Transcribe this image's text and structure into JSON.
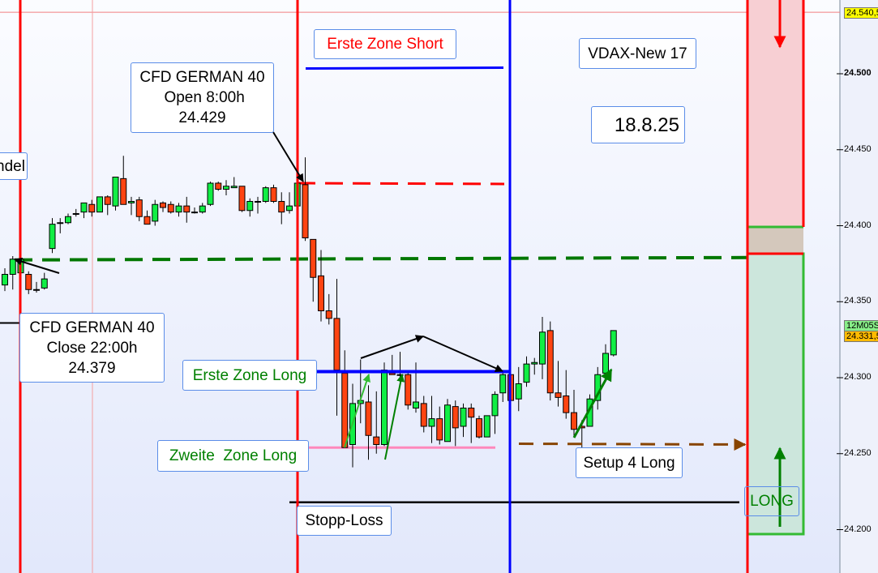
{
  "colors": {
    "up": "#11ee44",
    "down": "#ff4411",
    "session": "#ff0000",
    "zone_line": "#0000ff",
    "stop": "#000000",
    "support": "#007700",
    "pink": "#ff88bb",
    "brown": "#884400",
    "label_border": "#5b8de8"
  },
  "labels": {
    "partial_left": "ndel",
    "open_box": "CFD GERMAN 40\n Open 8:00h\n24.429",
    "erste_short": "Erste Zone Short",
    "vdax": "VDAX-New 17",
    "date": "18.8.25",
    "close_box": "CFD GERMAN 40\nClose 22:00h\n24.379",
    "erste_long": "Erste Zone Long",
    "zweite_long": "Zweite  Zone Long",
    "setup": "Setup 4 Long",
    "stop": "Stopp-Loss",
    "long": "LONG"
  },
  "chart_data": {
    "type": "candlestick",
    "ylim": [
      24175,
      24548
    ],
    "y_ticks": [
      "24.500",
      "24.450",
      "24.400",
      "24.350",
      "24.300",
      "24.250",
      "24.200"
    ],
    "y_tick_values": [
      24500,
      24450,
      24400,
      24350,
      24300,
      24250,
      24200
    ],
    "price_tags": {
      "top": "24.540,5",
      "timer": "12M05S",
      "last": "24.331,5"
    },
    "levels": {
      "short_zone": 24504,
      "open_line": 24428,
      "close_line": 24378,
      "first_long_zone": 24304,
      "second_long_zone": 24254,
      "setup_target": 24256,
      "stop_loss": 24218,
      "left_marker": 24336,
      "top_line": 24540.5
    },
    "candles_ohlc": [
      [
        24361,
        24372,
        24357,
        24368
      ],
      [
        24368,
        24380,
        24358,
        24378
      ],
      [
        24369,
        24378,
        24369,
        24378
      ],
      [
        24368,
        24370,
        24355,
        24358
      ],
      [
        24358,
        24363,
        24356,
        24358
      ],
      [
        24359,
        24369,
        24358,
        24365
      ],
      [
        24385,
        24405,
        24382,
        24401
      ],
      [
        24402,
        24405,
        24395,
        24402
      ],
      [
        24402,
        24408,
        24401,
        24406
      ],
      [
        24408,
        24411,
        24406,
        24408
      ],
      [
        24409,
        24415,
        24405,
        24415
      ],
      [
        24414,
        24417,
        24406,
        24409
      ],
      [
        24409,
        24419,
        24409,
        24419
      ],
      [
        24419,
        24420,
        24407,
        24414
      ],
      [
        24413,
        24432,
        24410,
        24432
      ],
      [
        24431,
        24446,
        24414,
        24414
      ],
      [
        24415,
        24419,
        24407,
        24416
      ],
      [
        24417,
        24419,
        24403,
        24406
      ],
      [
        24406,
        24410,
        24401,
        24401
      ],
      [
        24403,
        24417,
        24400,
        24414
      ],
      [
        24415,
        24416,
        24409,
        24412
      ],
      [
        24414,
        24416,
        24408,
        24409
      ],
      [
        24409,
        24415,
        24406,
        24413
      ],
      [
        24413,
        24419,
        24402,
        24409
      ],
      [
        24409,
        24412,
        24408,
        24409
      ],
      [
        24409,
        24415,
        24408,
        24413
      ],
      [
        24414,
        24429,
        24413,
        24428
      ],
      [
        24428,
        24429,
        24423,
        24424
      ],
      [
        24424,
        24430,
        24420,
        24426
      ],
      [
        24425,
        24432,
        24425,
        24426
      ],
      [
        24426,
        24426,
        24409,
        24410
      ],
      [
        24410,
        24418,
        24406,
        24416
      ],
      [
        24416,
        24419,
        24408,
        24416
      ],
      [
        24416,
        24426,
        24415,
        24425
      ],
      [
        24425,
        24427,
        24415,
        24416
      ],
      [
        24416,
        24422,
        24401,
        24409
      ],
      [
        24410,
        24422,
        24408,
        24413
      ],
      [
        24413,
        24430,
        24413,
        24428
      ],
      [
        24427,
        24445,
        24390,
        24392
      ],
      [
        24391,
        24391,
        24350,
        24366
      ],
      [
        24367,
        24384,
        24337,
        24344
      ],
      [
        24344,
        24355,
        24335,
        24339
      ],
      [
        24339,
        24365,
        24275,
        24305
      ],
      [
        24303,
        24318,
        24254,
        24254
      ],
      [
        24256,
        24296,
        24241,
        24283
      ],
      [
        24283,
        24312,
        24270,
        24285
      ],
      [
        24284,
        24295,
        24246,
        24262
      ],
      [
        24261,
        24291,
        24250,
        24256
      ],
      [
        24256,
        24310,
        24255,
        24305
      ],
      [
        24303,
        24315,
        24302,
        24302
      ],
      [
        24302,
        24317,
        24296,
        24302
      ],
      [
        24302,
        24305,
        24279,
        24282
      ],
      [
        24280,
        24310,
        24277,
        24284
      ],
      [
        24283,
        24288,
        24264,
        24268
      ],
      [
        24268,
        24288,
        24257,
        24273
      ],
      [
        24273,
        24281,
        24256,
        24259
      ],
      [
        24258,
        24286,
        24258,
        24282
      ],
      [
        24281,
        24285,
        24255,
        24267
      ],
      [
        24268,
        24283,
        24261,
        24280
      ],
      [
        24280,
        24283,
        24257,
        24274
      ],
      [
        24273,
        24275,
        24260,
        24261
      ],
      [
        24261,
        24275,
        24261,
        24275
      ],
      [
        24275,
        24291,
        24263,
        24289
      ],
      [
        24290,
        24303,
        24284,
        24302
      ],
      [
        24302,
        24302,
        24285,
        24285
      ],
      [
        24286,
        24307,
        24278,
        24296
      ],
      [
        24297,
        24314,
        24294,
        24309
      ],
      [
        24309,
        24313,
        24302,
        24310
      ],
      [
        24309,
        24340,
        24299,
        24330
      ],
      [
        24331,
        24337,
        24285,
        24290
      ],
      [
        24290,
        24311,
        24281,
        24287
      ],
      [
        24288,
        24305,
        24273,
        24277
      ],
      [
        24277,
        24292,
        24261,
        24266
      ],
      [
        24268,
        24272,
        24250,
        24267
      ],
      [
        24268,
        24289,
        24268,
        24286
      ],
      [
        24285,
        24307,
        24279,
        24302
      ],
      [
        24303,
        24322,
        24302,
        24316
      ],
      [
        24315,
        24331,
        24314,
        24331
      ]
    ]
  }
}
